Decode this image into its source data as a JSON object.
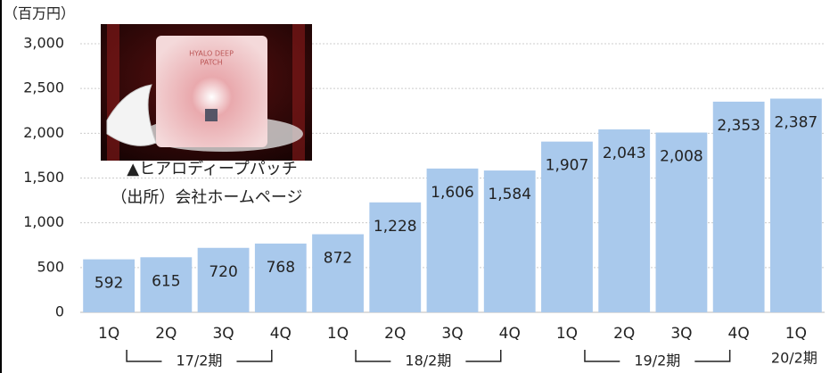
{
  "chart_data": {
    "type": "bar",
    "unit_label": "（百万円）",
    "groups": [
      {
        "label": "17/2期",
        "categories": [
          "1Q",
          "2Q",
          "3Q",
          "4Q"
        ]
      },
      {
        "label": "18/2期",
        "categories": [
          "1Q",
          "2Q",
          "3Q",
          "4Q"
        ]
      },
      {
        "label": "19/2期",
        "categories": [
          "1Q",
          "2Q",
          "3Q",
          "4Q"
        ]
      },
      {
        "label": "20/2期",
        "categories": [
          "1Q"
        ]
      }
    ],
    "values": [
      592,
      615,
      720,
      768,
      872,
      1228,
      1606,
      1584,
      1907,
      2043,
      2008,
      2353,
      2387
    ],
    "value_labels": [
      "592",
      "615",
      "720",
      "768",
      "872",
      "1,228",
      "1,606",
      "1,584",
      "1,907",
      "2,043",
      "2,008",
      "2,353",
      "2,387"
    ],
    "color": "#a9c9ec",
    "ylim": [
      0,
      3000
    ],
    "yticks": [
      0,
      500,
      {
        "value": 1000,
        "label": "1,000"
      },
      {
        "value": 1500,
        "label": "1,500"
      },
      {
        "value": 2000,
        "label": "2,000"
      },
      {
        "value": 2500,
        "label": "2,500"
      },
      {
        "value": 3000,
        "label": "3,000"
      }
    ],
    "grid": true,
    "image_caption": [
      "▲ヒアロディープパッチ",
      "（出所）会社ホームページ"
    ]
  }
}
